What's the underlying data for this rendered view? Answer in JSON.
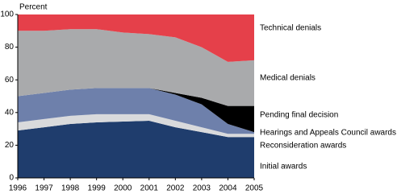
{
  "chart_data": {
    "type": "stacked-area",
    "y_label": "Percent",
    "x": [
      1996,
      1997,
      1998,
      1999,
      2000,
      2001,
      2002,
      2003,
      2004,
      2005
    ],
    "xlim": [
      1996,
      2005
    ],
    "xticks": [
      1996,
      1997,
      1998,
      1999,
      2000,
      2001,
      2002,
      2003,
      2004,
      2005
    ],
    "ylim": [
      0,
      100
    ],
    "yticks": [
      0,
      20,
      40,
      60,
      80,
      100
    ],
    "grid": false,
    "series": [
      {
        "name": "Initial awards",
        "color": "#1f3d6d",
        "values": [
          29,
          31,
          33,
          34,
          34.5,
          35,
          31,
          28,
          25,
          25
        ]
      },
      {
        "name": "Reconsideration awards",
        "color": "#d9dadc",
        "values": [
          5,
          5,
          5,
          5,
          4.5,
          4,
          4,
          3,
          2,
          2
        ]
      },
      {
        "name": "Hearings and Appeals Council awards",
        "color": "#6e80ab",
        "values": [
          16,
          16,
          16,
          16,
          16,
          16,
          16,
          14,
          6,
          1
        ]
      },
      {
        "name": "Pending final decision",
        "color": "#000000",
        "values": [
          0,
          0,
          0,
          0,
          0,
          0,
          1,
          4,
          11,
          16
        ]
      },
      {
        "name": "Medical denials",
        "color": "#a9aaac",
        "values": [
          40,
          38,
          37,
          36,
          34,
          33,
          34,
          31,
          27,
          28
        ]
      },
      {
        "name": "Technical denials",
        "color": "#e5404a",
        "values": [
          10,
          10,
          9,
          9,
          11,
          12,
          14,
          20,
          29,
          28
        ]
      }
    ]
  }
}
